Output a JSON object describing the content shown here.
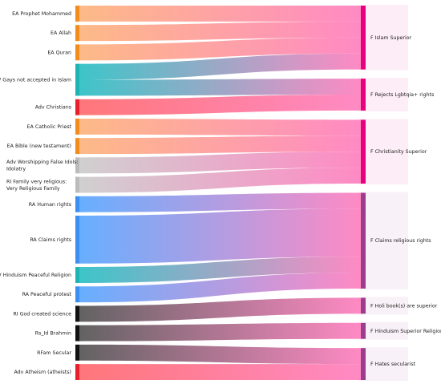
{
  "chart_data": {
    "type": "sankey",
    "source_nodes": [
      {
        "label": "EA Prophet Mohammed",
        "value": 1,
        "color": "#f28c1f",
        "link_color": "#fdb47d"
      },
      {
        "label": "EA Allah",
        "value": 1,
        "color": "#f28c1f",
        "link_color": "#fdb47d"
      },
      {
        "label": "EA Quran",
        "value": 1,
        "color": "#f28c1f",
        "link_color": "#fdb47d"
      },
      {
        "label": "PV Gays not accepted in Islam",
        "value": 2,
        "color": "#1fb3b3",
        "link_color": "#2cc0c4"
      },
      {
        "label": "Adv Christians",
        "value": 1,
        "color": "#e8202b",
        "link_color": "#ff6b6f"
      },
      {
        "label": "EA Catholic Priest",
        "value": 1,
        "color": "#f28c1f",
        "link_color": "#fdb47d"
      },
      {
        "label": "EA Bible (new testament)",
        "value": 1,
        "color": "#f28c1f",
        "link_color": "#fdb47d"
      },
      {
        "label": "Adv Worshipping False Idols: Idolatry",
        "value": 1,
        "color": "#bbbbbb",
        "link_color": "#cccccc"
      },
      {
        "label": "RI Family very religious: Very Religious Family",
        "value": 1,
        "color": "#bbbbbb",
        "link_color": "#cccccc"
      },
      {
        "label": "RA Human rights",
        "value": 1,
        "color": "#3d8ef0",
        "link_color": "#5aa8ff"
      },
      {
        "label": "RA Claims rights",
        "value": 3,
        "color": "#3d8ef0",
        "link_color": "#5aa8ff"
      },
      {
        "label": "PV Hinduism Peaceful Religion",
        "value": 1,
        "color": "#1fb3b3",
        "link_color": "#2cc0c4"
      },
      {
        "label": "RA Peaceful protest",
        "value": 1,
        "color": "#3d8ef0",
        "link_color": "#5aa8ff"
      },
      {
        "label": "RI God created science",
        "value": 1,
        "color": "#111111",
        "link_color": "#555555"
      },
      {
        "label": "Rs_Id Brahmin",
        "value": 1,
        "color": "#111111",
        "link_color": "#555555"
      },
      {
        "label": "RFam Secular",
        "value": 1,
        "color": "#111111",
        "link_color": "#555555"
      },
      {
        "label": "Adv Atheism (atheists)",
        "value": 1,
        "color": "#e8202b",
        "link_color": "#ff6b6f"
      }
    ],
    "target_nodes": [
      {
        "label": "F Islam Superior",
        "value": 4,
        "color": "#e6007e"
      },
      {
        "label": "F Rejects Lgbtqia+ rights",
        "value": 2,
        "color": "#e6007e"
      },
      {
        "label": "F Christianity Superior",
        "value": 4,
        "color": "#e6007e"
      },
      {
        "label": "F Claims religious rights",
        "value": 6,
        "color": "#9b3c8c"
      },
      {
        "label": "F Holi book(s) are superior",
        "value": 1,
        "color": "#9b3c8c"
      },
      {
        "label": "F Hinduism Superior Religion",
        "value": 1,
        "color": "#9b3c8c"
      },
      {
        "label": "F Hates secularist",
        "value": 2,
        "color": "#9b3c8c"
      }
    ],
    "links": [
      {
        "source": 0,
        "target": 0,
        "value": 1
      },
      {
        "source": 1,
        "target": 0,
        "value": 1
      },
      {
        "source": 2,
        "target": 0,
        "value": 1
      },
      {
        "source": 3,
        "target": 0,
        "value": 1
      },
      {
        "source": 3,
        "target": 1,
        "value": 1
      },
      {
        "source": 4,
        "target": 1,
        "value": 1
      },
      {
        "source": 5,
        "target": 2,
        "value": 1
      },
      {
        "source": 6,
        "target": 2,
        "value": 1
      },
      {
        "source": 7,
        "target": 2,
        "value": 1
      },
      {
        "source": 8,
        "target": 2,
        "value": 1
      },
      {
        "source": 9,
        "target": 3,
        "value": 1
      },
      {
        "source": 10,
        "target": 3,
        "value": 3
      },
      {
        "source": 11,
        "target": 3,
        "value": 1
      },
      {
        "source": 12,
        "target": 3,
        "value": 1
      },
      {
        "source": 13,
        "target": 4,
        "value": 1
      },
      {
        "source": 14,
        "target": 5,
        "value": 1
      },
      {
        "source": 15,
        "target": 6,
        "value": 1
      },
      {
        "source": 16,
        "target": 6,
        "value": 1
      }
    ],
    "link_end_color": "#ff80bf"
  }
}
